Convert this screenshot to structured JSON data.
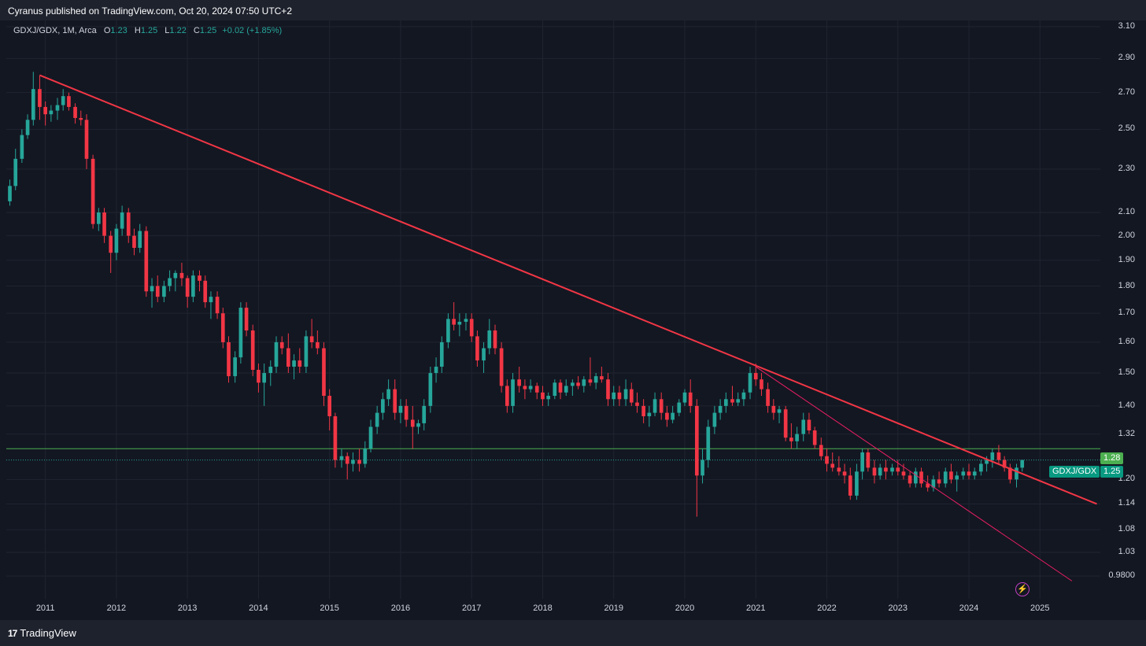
{
  "header": {
    "published": "Cyranus published on TradingView.com, Oct 20, 2024 07:50 UTC+2"
  },
  "legend": {
    "symbol": "GDXJ/GDX, 1M, Arca",
    "o_label": "O",
    "o_value": "1.23",
    "h_label": "H",
    "h_value": "1.25",
    "l_label": "L",
    "l_value": "1.22",
    "c_label": "C",
    "c_value": "1.25",
    "change": "+0.02 (+1.85%)"
  },
  "footer": {
    "brand": "TradingView",
    "brand_mark": "17"
  },
  "colors": {
    "up": "#26a69a",
    "down": "#f23645",
    "trendline": "#f23645",
    "channel": "#e91e63",
    "hline": "#4caf50",
    "background": "#131722"
  },
  "chart_data": {
    "type": "candlestick",
    "title": "GDXJ/GDX, 1M, Arca",
    "y_scale": "log",
    "ylim": [
      0.95,
      3.12
    ],
    "y_ticks": [
      "3.10",
      "2.90",
      "2.70",
      "2.50",
      "2.30",
      "2.10",
      "2.00",
      "1.90",
      "1.80",
      "1.70",
      "1.60",
      "1.50",
      "1.40",
      "1.32",
      "1.20",
      "1.14",
      "1.08",
      "1.03",
      "0.9800"
    ],
    "x_ticks": [
      "2011",
      "2012",
      "2013",
      "2014",
      "2015",
      "2016",
      "2017",
      "2018",
      "2019",
      "2020",
      "2021",
      "2022",
      "2023",
      "2024",
      "2025"
    ],
    "x_range_years": [
      2010.45,
      2025.85
    ],
    "ohlc_approx_monthly": [
      [
        2010.42,
        2.1,
        2.17,
        2.08,
        2.15
      ],
      [
        2010.5,
        2.15,
        2.25,
        2.13,
        2.22
      ],
      [
        2010.58,
        2.22,
        2.4,
        2.2,
        2.35
      ],
      [
        2010.67,
        2.35,
        2.5,
        2.33,
        2.47
      ],
      [
        2010.75,
        2.47,
        2.58,
        2.45,
        2.55
      ],
      [
        2010.83,
        2.55,
        2.82,
        2.52,
        2.72
      ],
      [
        2010.92,
        2.72,
        2.8,
        2.55,
        2.62
      ],
      [
        2011.0,
        2.62,
        2.65,
        2.52,
        2.58
      ],
      [
        2011.08,
        2.58,
        2.63,
        2.54,
        2.6
      ],
      [
        2011.17,
        2.6,
        2.67,
        2.55,
        2.63
      ],
      [
        2011.25,
        2.63,
        2.72,
        2.6,
        2.68
      ],
      [
        2011.33,
        2.68,
        2.7,
        2.6,
        2.62
      ],
      [
        2011.42,
        2.62,
        2.64,
        2.53,
        2.56
      ],
      [
        2011.5,
        2.56,
        2.6,
        2.52,
        2.55
      ],
      [
        2011.58,
        2.55,
        2.58,
        2.3,
        2.35
      ],
      [
        2011.67,
        2.35,
        2.37,
        2.03,
        2.05
      ],
      [
        2011.75,
        2.05,
        2.12,
        2.02,
        2.1
      ],
      [
        2011.83,
        2.1,
        2.12,
        1.97,
        2.0
      ],
      [
        2011.92,
        2.0,
        2.02,
        1.85,
        1.93
      ],
      [
        2012.0,
        1.93,
        2.05,
        1.9,
        2.03
      ],
      [
        2012.08,
        2.03,
        2.13,
        2.0,
        2.1
      ],
      [
        2012.17,
        2.1,
        2.12,
        1.97,
        2.0
      ],
      [
        2012.25,
        2.0,
        2.03,
        1.92,
        1.95
      ],
      [
        2012.33,
        1.95,
        2.05,
        1.93,
        2.02
      ],
      [
        2012.42,
        2.02,
        2.04,
        1.76,
        1.78
      ],
      [
        2012.5,
        1.78,
        1.83,
        1.72,
        1.8
      ],
      [
        2012.58,
        1.8,
        1.84,
        1.74,
        1.76
      ],
      [
        2012.67,
        1.76,
        1.82,
        1.74,
        1.8
      ],
      [
        2012.75,
        1.8,
        1.86,
        1.78,
        1.83
      ],
      [
        2012.83,
        1.83,
        1.86,
        1.78,
        1.85
      ],
      [
        2012.92,
        1.85,
        1.89,
        1.8,
        1.83
      ],
      [
        2013.0,
        1.83,
        1.84,
        1.72,
        1.76
      ],
      [
        2013.08,
        1.76,
        1.86,
        1.74,
        1.84
      ],
      [
        2013.17,
        1.84,
        1.86,
        1.78,
        1.82
      ],
      [
        2013.25,
        1.82,
        1.84,
        1.72,
        1.74
      ],
      [
        2013.33,
        1.74,
        1.78,
        1.68,
        1.76
      ],
      [
        2013.42,
        1.76,
        1.78,
        1.68,
        1.7
      ],
      [
        2013.5,
        1.7,
        1.72,
        1.58,
        1.6
      ],
      [
        2013.58,
        1.6,
        1.62,
        1.47,
        1.49
      ],
      [
        2013.67,
        1.49,
        1.57,
        1.47,
        1.55
      ],
      [
        2013.75,
        1.55,
        1.74,
        1.53,
        1.72
      ],
      [
        2013.83,
        1.72,
        1.74,
        1.62,
        1.64
      ],
      [
        2013.92,
        1.64,
        1.66,
        1.49,
        1.51
      ],
      [
        2014.0,
        1.51,
        1.53,
        1.44,
        1.47
      ],
      [
        2014.08,
        1.47,
        1.53,
        1.4,
        1.5
      ],
      [
        2014.17,
        1.5,
        1.54,
        1.46,
        1.52
      ],
      [
        2014.25,
        1.52,
        1.62,
        1.5,
        1.6
      ],
      [
        2014.33,
        1.6,
        1.62,
        1.56,
        1.58
      ],
      [
        2014.42,
        1.58,
        1.63,
        1.5,
        1.52
      ],
      [
        2014.5,
        1.52,
        1.56,
        1.48,
        1.54
      ],
      [
        2014.58,
        1.54,
        1.58,
        1.5,
        1.52
      ],
      [
        2014.67,
        1.52,
        1.64,
        1.5,
        1.62
      ],
      [
        2014.75,
        1.62,
        1.68,
        1.58,
        1.6
      ],
      [
        2014.83,
        1.6,
        1.64,
        1.56,
        1.58
      ],
      [
        2014.92,
        1.58,
        1.6,
        1.4,
        1.43
      ],
      [
        2015.0,
        1.43,
        1.45,
        1.33,
        1.37
      ],
      [
        2015.08,
        1.37,
        1.38,
        1.23,
        1.25
      ],
      [
        2015.17,
        1.25,
        1.28,
        1.23,
        1.26
      ],
      [
        2015.25,
        1.26,
        1.27,
        1.2,
        1.24
      ],
      [
        2015.33,
        1.24,
        1.27,
        1.22,
        1.25
      ],
      [
        2015.42,
        1.25,
        1.28,
        1.22,
        1.24
      ],
      [
        2015.5,
        1.24,
        1.3,
        1.23,
        1.28
      ],
      [
        2015.58,
        1.28,
        1.36,
        1.27,
        1.34
      ],
      [
        2015.67,
        1.34,
        1.4,
        1.32,
        1.38
      ],
      [
        2015.75,
        1.38,
        1.44,
        1.36,
        1.42
      ],
      [
        2015.83,
        1.42,
        1.48,
        1.4,
        1.45
      ],
      [
        2015.92,
        1.45,
        1.48,
        1.36,
        1.38
      ],
      [
        2016.0,
        1.38,
        1.42,
        1.35,
        1.4
      ],
      [
        2016.08,
        1.4,
        1.42,
        1.34,
        1.36
      ],
      [
        2016.17,
        1.36,
        1.4,
        1.28,
        1.34
      ],
      [
        2016.25,
        1.34,
        1.36,
        1.32,
        1.35
      ],
      [
        2016.33,
        1.35,
        1.42,
        1.33,
        1.4
      ],
      [
        2016.42,
        1.4,
        1.52,
        1.38,
        1.5
      ],
      [
        2016.5,
        1.5,
        1.55,
        1.47,
        1.52
      ],
      [
        2016.58,
        1.52,
        1.62,
        1.5,
        1.6
      ],
      [
        2016.67,
        1.6,
        1.7,
        1.58,
        1.68
      ],
      [
        2016.75,
        1.68,
        1.74,
        1.64,
        1.66
      ],
      [
        2016.83,
        1.66,
        1.7,
        1.62,
        1.67
      ],
      [
        2016.92,
        1.67,
        1.7,
        1.64,
        1.68
      ],
      [
        2017.0,
        1.68,
        1.7,
        1.6,
        1.62
      ],
      [
        2017.08,
        1.62,
        1.64,
        1.52,
        1.54
      ],
      [
        2017.17,
        1.54,
        1.6,
        1.5,
        1.58
      ],
      [
        2017.25,
        1.58,
        1.68,
        1.56,
        1.64
      ],
      [
        2017.33,
        1.64,
        1.66,
        1.56,
        1.58
      ],
      [
        2017.42,
        1.58,
        1.6,
        1.44,
        1.46
      ],
      [
        2017.5,
        1.46,
        1.48,
        1.38,
        1.4
      ],
      [
        2017.58,
        1.4,
        1.5,
        1.38,
        1.48
      ],
      [
        2017.67,
        1.48,
        1.52,
        1.44,
        1.46
      ],
      [
        2017.75,
        1.46,
        1.48,
        1.42,
        1.45
      ],
      [
        2017.83,
        1.45,
        1.48,
        1.44,
        1.46
      ],
      [
        2017.92,
        1.46,
        1.47,
        1.42,
        1.44
      ],
      [
        2018.0,
        1.44,
        1.46,
        1.4,
        1.42
      ],
      [
        2018.08,
        1.42,
        1.44,
        1.4,
        1.43
      ],
      [
        2018.17,
        1.43,
        1.48,
        1.42,
        1.47
      ],
      [
        2018.25,
        1.47,
        1.48,
        1.42,
        1.44
      ],
      [
        2018.33,
        1.44,
        1.48,
        1.43,
        1.46
      ],
      [
        2018.42,
        1.46,
        1.48,
        1.43,
        1.47
      ],
      [
        2018.5,
        1.47,
        1.49,
        1.45,
        1.46
      ],
      [
        2018.58,
        1.46,
        1.49,
        1.44,
        1.48
      ],
      [
        2018.67,
        1.48,
        1.55,
        1.46,
        1.47
      ],
      [
        2018.75,
        1.47,
        1.5,
        1.45,
        1.49
      ],
      [
        2018.83,
        1.49,
        1.52,
        1.47,
        1.48
      ],
      [
        2018.92,
        1.48,
        1.5,
        1.4,
        1.42
      ],
      [
        2019.0,
        1.42,
        1.46,
        1.4,
        1.44
      ],
      [
        2019.08,
        1.44,
        1.46,
        1.4,
        1.42
      ],
      [
        2019.17,
        1.42,
        1.48,
        1.4,
        1.45
      ],
      [
        2019.25,
        1.45,
        1.47,
        1.4,
        1.41
      ],
      [
        2019.33,
        1.41,
        1.44,
        1.38,
        1.4
      ],
      [
        2019.42,
        1.4,
        1.42,
        1.35,
        1.37
      ],
      [
        2019.5,
        1.37,
        1.4,
        1.34,
        1.38
      ],
      [
        2019.58,
        1.38,
        1.44,
        1.37,
        1.42
      ],
      [
        2019.67,
        1.42,
        1.44,
        1.36,
        1.38
      ],
      [
        2019.75,
        1.38,
        1.4,
        1.34,
        1.36
      ],
      [
        2019.83,
        1.36,
        1.4,
        1.35,
        1.38
      ],
      [
        2019.92,
        1.38,
        1.42,
        1.37,
        1.41
      ],
      [
        2020.0,
        1.41,
        1.45,
        1.4,
        1.44
      ],
      [
        2020.08,
        1.44,
        1.48,
        1.38,
        1.4
      ],
      [
        2020.17,
        1.4,
        1.42,
        1.11,
        1.21
      ],
      [
        2020.25,
        1.21,
        1.28,
        1.19,
        1.25
      ],
      [
        2020.33,
        1.25,
        1.36,
        1.23,
        1.34
      ],
      [
        2020.42,
        1.34,
        1.4,
        1.32,
        1.38
      ],
      [
        2020.5,
        1.38,
        1.42,
        1.36,
        1.4
      ],
      [
        2020.58,
        1.4,
        1.44,
        1.38,
        1.42
      ],
      [
        2020.67,
        1.42,
        1.46,
        1.4,
        1.41
      ],
      [
        2020.75,
        1.41,
        1.44,
        1.4,
        1.42
      ],
      [
        2020.83,
        1.42,
        1.45,
        1.4,
        1.44
      ],
      [
        2020.92,
        1.44,
        1.52,
        1.42,
        1.5
      ],
      [
        2021.0,
        1.5,
        1.53,
        1.46,
        1.48
      ],
      [
        2021.08,
        1.48,
        1.5,
        1.43,
        1.45
      ],
      [
        2021.17,
        1.45,
        1.47,
        1.38,
        1.4
      ],
      [
        2021.25,
        1.4,
        1.42,
        1.36,
        1.38
      ],
      [
        2021.33,
        1.38,
        1.4,
        1.35,
        1.39
      ],
      [
        2021.42,
        1.39,
        1.4,
        1.3,
        1.31
      ],
      [
        2021.5,
        1.31,
        1.35,
        1.28,
        1.3
      ],
      [
        2021.58,
        1.3,
        1.34,
        1.28,
        1.32
      ],
      [
        2021.67,
        1.32,
        1.38,
        1.3,
        1.36
      ],
      [
        2021.75,
        1.36,
        1.38,
        1.32,
        1.33
      ],
      [
        2021.83,
        1.33,
        1.34,
        1.28,
        1.29
      ],
      [
        2021.92,
        1.29,
        1.31,
        1.25,
        1.26
      ],
      [
        2022.0,
        1.26,
        1.28,
        1.22,
        1.24
      ],
      [
        2022.08,
        1.24,
        1.27,
        1.22,
        1.23
      ],
      [
        2022.17,
        1.23,
        1.26,
        1.21,
        1.22
      ],
      [
        2022.25,
        1.22,
        1.24,
        1.19,
        1.21
      ],
      [
        2022.33,
        1.21,
        1.23,
        1.15,
        1.16
      ],
      [
        2022.42,
        1.16,
        1.24,
        1.15,
        1.22
      ],
      [
        2022.5,
        1.22,
        1.28,
        1.2,
        1.27
      ],
      [
        2022.58,
        1.27,
        1.28,
        1.22,
        1.23
      ],
      [
        2022.67,
        1.23,
        1.25,
        1.19,
        1.21
      ],
      [
        2022.75,
        1.21,
        1.24,
        1.2,
        1.23
      ],
      [
        2022.83,
        1.23,
        1.25,
        1.2,
        1.22
      ],
      [
        2022.92,
        1.22,
        1.24,
        1.21,
        1.23
      ],
      [
        2023.0,
        1.23,
        1.25,
        1.21,
        1.22
      ],
      [
        2023.08,
        1.22,
        1.24,
        1.2,
        1.21
      ],
      [
        2023.17,
        1.21,
        1.22,
        1.18,
        1.19
      ],
      [
        2023.25,
        1.19,
        1.23,
        1.18,
        1.22
      ],
      [
        2023.33,
        1.22,
        1.23,
        1.18,
        1.19
      ],
      [
        2023.42,
        1.19,
        1.21,
        1.17,
        1.18
      ],
      [
        2023.5,
        1.18,
        1.21,
        1.17,
        1.2
      ],
      [
        2023.58,
        1.2,
        1.22,
        1.18,
        1.19
      ],
      [
        2023.67,
        1.19,
        1.23,
        1.18,
        1.22
      ],
      [
        2023.75,
        1.22,
        1.24,
        1.19,
        1.2
      ],
      [
        2023.83,
        1.2,
        1.22,
        1.17,
        1.21
      ],
      [
        2023.92,
        1.21,
        1.23,
        1.2,
        1.22
      ],
      [
        2024.0,
        1.22,
        1.24,
        1.2,
        1.21
      ],
      [
        2024.08,
        1.21,
        1.23,
        1.2,
        1.22
      ],
      [
        2024.17,
        1.22,
        1.25,
        1.21,
        1.24
      ],
      [
        2024.25,
        1.24,
        1.26,
        1.22,
        1.25
      ],
      [
        2024.33,
        1.25,
        1.28,
        1.23,
        1.27
      ],
      [
        2024.42,
        1.27,
        1.29,
        1.24,
        1.25
      ],
      [
        2024.5,
        1.25,
        1.26,
        1.22,
        1.23
      ],
      [
        2024.58,
        1.23,
        1.24,
        1.19,
        1.2
      ],
      [
        2024.67,
        1.2,
        1.24,
        1.18,
        1.23
      ],
      [
        2024.75,
        1.23,
        1.25,
        1.22,
        1.25
      ]
    ],
    "lines": {
      "main_trendline": {
        "from": [
          2010.92,
          2.8
        ],
        "to": [
          2025.8,
          1.14
        ]
      },
      "lower_trendline": {
        "from": [
          2021.0,
          1.52
        ],
        "to": [
          2025.45,
          0.97
        ]
      },
      "horizontal_level": 1.28,
      "current_price": 1.25
    },
    "price_labels": {
      "level_value": "1.28",
      "symbol_tag": "GDXJ/GDX",
      "price_value": "1.25"
    }
  }
}
